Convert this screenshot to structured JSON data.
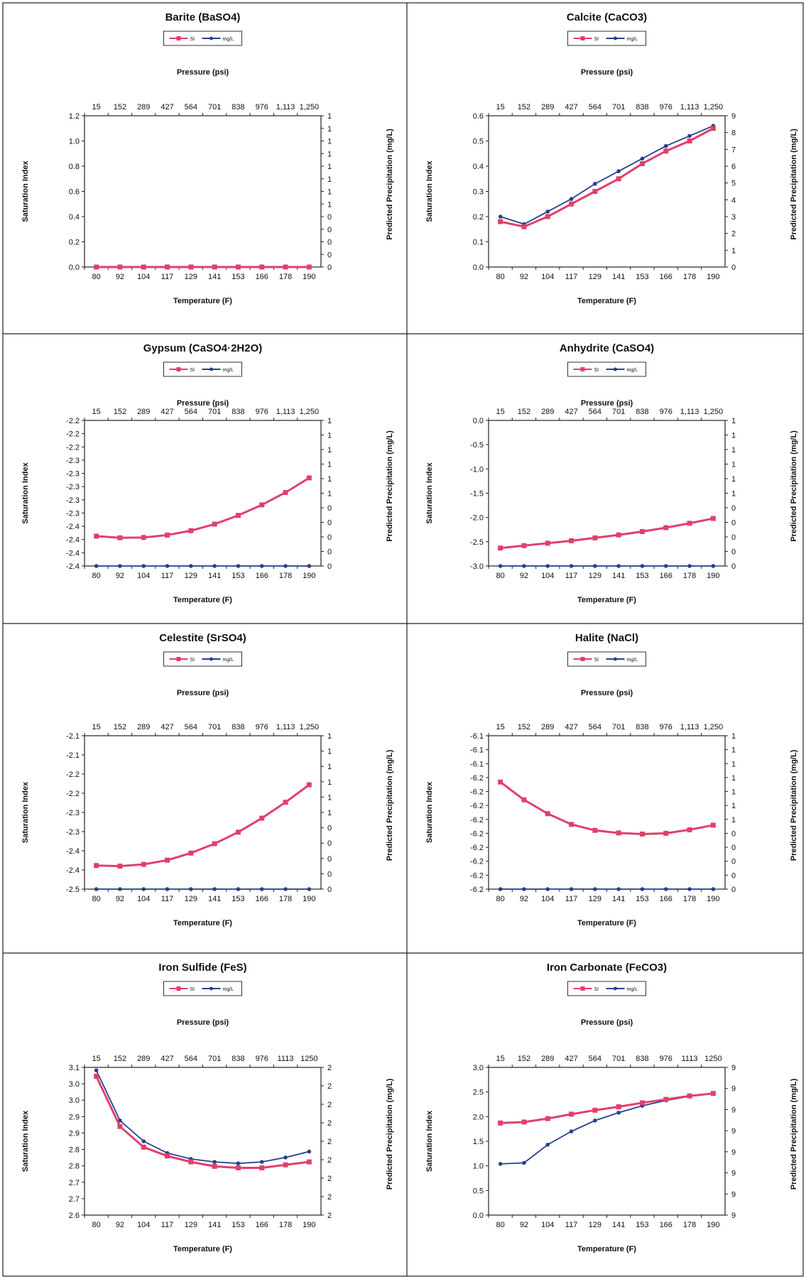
{
  "colors": {
    "si": "#e0406a",
    "mgl": "#2a3f8c",
    "frame": "#222222"
  },
  "chart_data": [
    {
      "type": "line",
      "title": "Barite (BaSO4)",
      "legend": [
        "SI",
        "mg/L"
      ],
      "xlabel": "Temperature (F)",
      "x2label": "Pressure (psi)",
      "ylabel": "Saturation Index",
      "y2label": "Predicted Precipitation (mg/L)",
      "categories": [
        "80",
        "92",
        "104",
        "117",
        "129",
        "141",
        "153",
        "166",
        "178",
        "190"
      ],
      "pressure_ticks": [
        "15",
        "152",
        "289",
        "427",
        "564",
        "701",
        "838",
        "976",
        "1,113",
        "1,250"
      ],
      "ylim": [
        0,
        1.2
      ],
      "yticks": [
        "0.0",
        "0.2",
        "0.4",
        "0.6",
        "0.8",
        "1.0",
        "1.2"
      ],
      "y2ticks": [
        "0",
        "0",
        "0",
        "0",
        "0",
        "1",
        "1",
        "1",
        "1",
        "1",
        "1",
        "1",
        "1"
      ],
      "series": [
        {
          "name": "SI",
          "values": [
            0,
            0,
            0,
            0,
            0,
            0,
            0,
            0,
            0,
            0
          ]
        },
        {
          "name": "mg/L",
          "values": [
            0,
            0,
            0,
            0,
            0,
            0,
            0,
            0,
            0,
            0
          ]
        }
      ]
    },
    {
      "type": "line",
      "title": "Calcite (CaCO3)",
      "legend": [
        "SI",
        "mg/L"
      ],
      "xlabel": "Temperature (F)",
      "x2label": "Pressure (psi)",
      "ylabel": "Saturation Index",
      "y2label": "Predicted Precipitation (mg/L)",
      "categories": [
        "80",
        "92",
        "104",
        "117",
        "129",
        "141",
        "153",
        "166",
        "178",
        "190"
      ],
      "pressure_ticks": [
        "15",
        "152",
        "289",
        "427",
        "564",
        "701",
        "838",
        "976",
        "1,113",
        "1,250"
      ],
      "ylim": [
        0,
        0.6
      ],
      "yticks": [
        "0.0",
        "0.1",
        "0.2",
        "0.3",
        "0.4",
        "0.5",
        "0.6"
      ],
      "y2ticks": [
        "0",
        "1",
        "2",
        "3",
        "4",
        "5",
        "6",
        "7",
        "8",
        "9"
      ],
      "series": [
        {
          "name": "SI",
          "values": [
            0.18,
            0.16,
            0.2,
            0.25,
            0.3,
            0.35,
            0.41,
            0.46,
            0.5,
            0.55
          ]
        },
        {
          "name": "mg/L",
          "values": [
            0.2,
            0.17,
            0.22,
            0.27,
            0.33,
            0.38,
            0.43,
            0.48,
            0.52,
            0.56
          ]
        }
      ]
    },
    {
      "type": "line",
      "title": "Gypsum (CaSO4·2H2O)",
      "legend": [
        "SI",
        "mg/L"
      ],
      "xlabel": "Temperature (F)",
      "x2label": "Pressure (psi)",
      "ylabel": "Saturation Index",
      "y2label": "Predicted Precipitation (mg/L)",
      "categories": [
        "80",
        "92",
        "104",
        "117",
        "129",
        "141",
        "153",
        "166",
        "178",
        "190"
      ],
      "pressure_ticks": [
        "15",
        "152",
        "289",
        "427",
        "564",
        "701",
        "838",
        "976",
        "1,113",
        "1,250"
      ],
      "ylim": [
        -2.4,
        -2.2
      ],
      "yticks": [
        "-2.4",
        "-2.4",
        "-2.4",
        "-2.4",
        "-2.3",
        "-2.3",
        "-2.3",
        "-2.3",
        "-2.3",
        "-2.2",
        "-2.2",
        "-2.2"
      ],
      "y2ticks": [
        "0",
        "0",
        "0",
        "0",
        "0",
        "1",
        "1",
        "1",
        "1",
        "1",
        "1"
      ],
      "series": [
        {
          "name": "SI",
          "values": [
            -2.359,
            -2.3612,
            -2.3608,
            -2.3575,
            -2.3515,
            -2.3425,
            -2.3305,
            -2.316,
            -2.299,
            -2.279
          ]
        },
        {
          "name": "mg/L",
          "values": [
            -2.4,
            -2.4,
            -2.4,
            -2.4,
            -2.4,
            -2.4,
            -2.4,
            -2.4,
            -2.4,
            -2.4
          ]
        }
      ]
    },
    {
      "type": "line",
      "title": "Anhydrite (CaSO4)",
      "legend": [
        "SI",
        "mg/L"
      ],
      "xlabel": "Temperature (F)",
      "x2label": "Pressure (psi)",
      "ylabel": "Saturation Index",
      "y2label": "Predicted Precipitation (mg/L)",
      "categories": [
        "80",
        "92",
        "104",
        "117",
        "129",
        "141",
        "153",
        "166",
        "178",
        "190"
      ],
      "pressure_ticks": [
        "15",
        "152",
        "289",
        "427",
        "564",
        "701",
        "838",
        "976",
        "1,113",
        "1,250"
      ],
      "ylim": [
        -3.0,
        0.0
      ],
      "yticks": [
        "-3.0",
        "-2.5",
        "-2.0",
        "-1.5",
        "-1.0",
        "-0.5",
        "0.0"
      ],
      "y2ticks": [
        "0",
        "0",
        "0",
        "0",
        "0",
        "1",
        "1",
        "1",
        "1",
        "1",
        "1"
      ],
      "series": [
        {
          "name": "SI",
          "values": [
            -2.63,
            -2.58,
            -2.53,
            -2.48,
            -2.42,
            -2.36,
            -2.29,
            -2.21,
            -2.12,
            -2.02
          ]
        },
        {
          "name": "mg/L",
          "values": [
            -3.0,
            -3.0,
            -3.0,
            -3.0,
            -3.0,
            -3.0,
            -3.0,
            -3.0,
            -3.0,
            -3.0
          ]
        }
      ]
    },
    {
      "type": "line",
      "title": "Celestite (SrSO4)",
      "legend": [
        "SI",
        "mg/L"
      ],
      "xlabel": "Temperature (F)",
      "x2label": "Pressure (psi)",
      "ylabel": "Saturation Index",
      "y2label": "Predicted Precipitation (mg/L)",
      "categories": [
        "80",
        "92",
        "104",
        "117",
        "129",
        "141",
        "153",
        "166",
        "178",
        "190"
      ],
      "pressure_ticks": [
        "15",
        "152",
        "289",
        "427",
        "564",
        "701",
        "838",
        "976",
        "1,113",
        "1,250"
      ],
      "ylim": [
        -2.5,
        -2.1
      ],
      "yticks": [
        "-2.5",
        "-2.4",
        "-2.4",
        "-2.3",
        "-2.3",
        "-2.2",
        "-2.2",
        "-2.1",
        "-2.1"
      ],
      "y2ticks": [
        "0",
        "0",
        "0",
        "0",
        "0",
        "1",
        "1",
        "1",
        "1",
        "1",
        "1"
      ],
      "series": [
        {
          "name": "SI",
          "values": [
            -2.4385,
            -2.44,
            -2.4355,
            -2.4245,
            -2.406,
            -2.3815,
            -2.3515,
            -2.315,
            -2.2735,
            -2.228
          ]
        },
        {
          "name": "mg/L",
          "values": [
            -2.5,
            -2.5,
            -2.5,
            -2.5,
            -2.5,
            -2.5,
            -2.5,
            -2.5,
            -2.5,
            -2.5
          ]
        }
      ]
    },
    {
      "type": "line",
      "title": "Halite (NaCl)",
      "legend": [
        "SI",
        "mg/L"
      ],
      "xlabel": "Temperature (F)",
      "x2label": "Pressure (psi)",
      "ylabel": "Saturation Index",
      "y2label": "Predicted Precipitation (mg/L)",
      "categories": [
        "80",
        "92",
        "104",
        "117",
        "129",
        "141",
        "153",
        "166",
        "178",
        "190"
      ],
      "pressure_ticks": [
        "15",
        "152",
        "289",
        "427",
        "564",
        "701",
        "838",
        "976",
        "1,113",
        "1,250"
      ],
      "ylim": [
        -6.2,
        -6.1
      ],
      "yticks": [
        "-6.2",
        "-6.2",
        "-6.2",
        "-6.2",
        "-6.2",
        "-6.2",
        "-6.2",
        "-6.2",
        "-6.2",
        "-6.1",
        "-6.1",
        "-6.1"
      ],
      "y2ticks": [
        "0",
        "0",
        "0",
        "0",
        "0",
        "1",
        "1",
        "1",
        "1",
        "1",
        "1",
        "1"
      ],
      "series": [
        {
          "name": "SI",
          "values": [
            -6.1302,
            -6.1418,
            -6.1508,
            -6.1578,
            -6.1617,
            -6.1634,
            -6.1641,
            -6.1636,
            -6.1613,
            -6.1583
          ]
        },
        {
          "name": "mg/L",
          "values": [
            -6.2,
            -6.2,
            -6.2,
            -6.2,
            -6.2,
            -6.2,
            -6.2,
            -6.2,
            -6.2,
            -6.2
          ]
        }
      ]
    },
    {
      "type": "line",
      "title": "Iron Sulfide (FeS)",
      "legend": [
        "SI",
        "mg/L"
      ],
      "xlabel": "Temperature (F)",
      "x2label": "Pressure (psi)",
      "ylabel": "Saturation Index",
      "y2label": "Predicted Precipitation (mg/L)",
      "categories": [
        "80",
        "92",
        "104",
        "117",
        "129",
        "141",
        "153",
        "166",
        "178",
        "190"
      ],
      "pressure_ticks": [
        "15",
        "152",
        "289",
        "427",
        "564",
        "701",
        "838",
        "976",
        "1113",
        "1250"
      ],
      "ylim": [
        2.6,
        3.1
      ],
      "yticks": [
        "2.6",
        "2.7",
        "2.7",
        "2.8",
        "2.8",
        "2.9",
        "2.9",
        "3.0",
        "3.0",
        "3.1"
      ],
      "y2ticks": [
        "2",
        "2",
        "2",
        "2",
        "2",
        "2",
        "2",
        "2",
        "2"
      ],
      "series": [
        {
          "name": "SI",
          "values": [
            3.07,
            2.9,
            2.83,
            2.8,
            2.78,
            2.765,
            2.76,
            2.76,
            2.77,
            2.78
          ]
        },
        {
          "name": "mg/L",
          "values": [
            3.09,
            2.92,
            2.85,
            2.81,
            2.79,
            2.78,
            2.775,
            2.78,
            2.795,
            2.815
          ]
        }
      ]
    },
    {
      "type": "line",
      "title": "Iron Carbonate (FeCO3)",
      "legend": [
        "SI",
        "mg/L"
      ],
      "xlabel": "Temperature (F)",
      "x2label": "Pressure (psi)",
      "ylabel": "Saturation Index",
      "y2label": "Predicted Precipitation (mg/L)",
      "categories": [
        "80",
        "92",
        "104",
        "117",
        "129",
        "141",
        "153",
        "166",
        "178",
        "190"
      ],
      "pressure_ticks": [
        "15",
        "152",
        "289",
        "427",
        "564",
        "701",
        "838",
        "976",
        "1113",
        "1250"
      ],
      "ylim": [
        0.0,
        3.0
      ],
      "yticks": [
        "0.0",
        "0.5",
        "1.0",
        "1.5",
        "2.0",
        "2.5",
        "3.0"
      ],
      "y2ticks": [
        "9",
        "9",
        "9",
        "9",
        "9",
        "9",
        "9",
        "9"
      ],
      "series": [
        {
          "name": "SI",
          "values": [
            1.87,
            1.89,
            1.96,
            2.05,
            2.13,
            2.2,
            2.28,
            2.35,
            2.42,
            2.47
          ]
        },
        {
          "name": "mg/L",
          "values": [
            1.04,
            1.06,
            1.43,
            1.7,
            1.92,
            2.08,
            2.22,
            2.33,
            2.41,
            2.47
          ]
        }
      ]
    }
  ]
}
